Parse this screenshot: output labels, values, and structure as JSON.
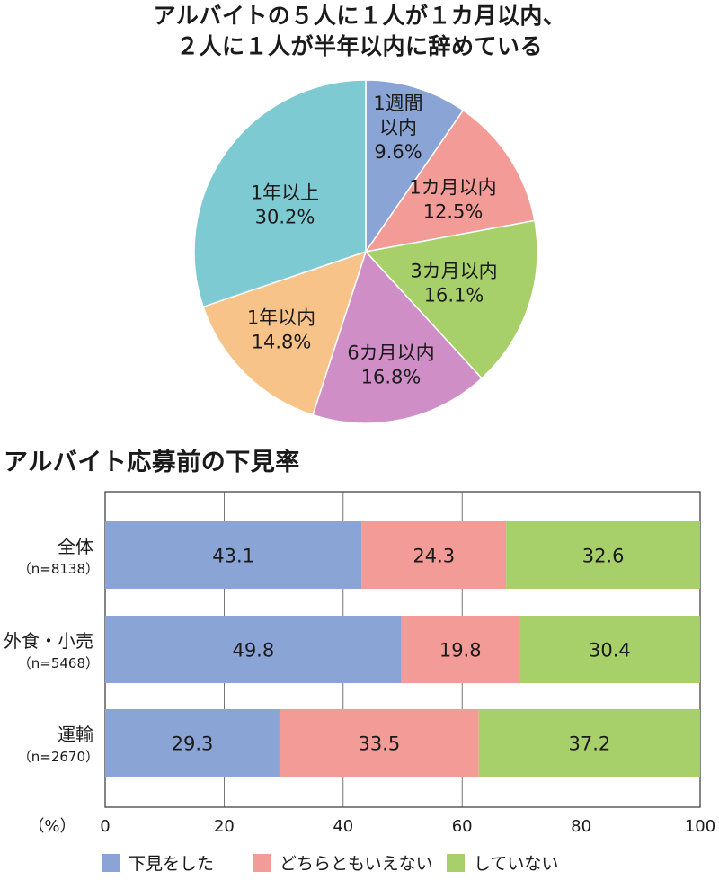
{
  "chart_data": [
    {
      "type": "pie",
      "title_line1": "アルバイトの５人に１人が１カ月以内、",
      "title_line2": "２人に１人が半年以内に辞めている",
      "slices": [
        {
          "label": [
            "1週間",
            "以内"
          ],
          "value": 9.6,
          "value_text": "9.6%",
          "color": "#8aa4d6"
        },
        {
          "label": [
            "1カ月以内"
          ],
          "value": 12.5,
          "value_text": "12.5%",
          "color": "#f29b97"
        },
        {
          "label": [
            "3カ月以内"
          ],
          "value": 16.1,
          "value_text": "16.1%",
          "color": "#a8d06a"
        },
        {
          "label": [
            "6カ月以内"
          ],
          "value": 16.8,
          "value_text": "16.8%",
          "color": "#cf8fc6"
        },
        {
          "label": [
            "1年以内"
          ],
          "value": 14.8,
          "value_text": "14.8%",
          "color": "#f7c389"
        },
        {
          "label": [
            "1年以上"
          ],
          "value": 30.2,
          "value_text": "30.2%",
          "color": "#7ecad2"
        }
      ]
    },
    {
      "type": "bar",
      "orientation": "horizontal-stacked",
      "title": "アルバイト応募前の下見率",
      "categories": [
        {
          "name": "全体",
          "n": "（n=8138）"
        },
        {
          "name": "外食・小売",
          "n": "（n=5468）"
        },
        {
          "name": "運輸",
          "n": "（n=2670）"
        }
      ],
      "series": [
        {
          "name": "下見をした",
          "color": "#8aa4d6",
          "values": [
            43.1,
            49.8,
            29.3
          ]
        },
        {
          "name": "どちらともいえない",
          "color": "#f29b97",
          "values": [
            24.3,
            19.8,
            33.5
          ]
        },
        {
          "name": "していない",
          "color": "#a8d06a",
          "values": [
            32.6,
            30.4,
            37.2
          ]
        }
      ],
      "axis_unit": "（%）",
      "xlim": [
        0,
        100
      ],
      "ticks": [
        0,
        20,
        40,
        60,
        80,
        100
      ]
    }
  ]
}
